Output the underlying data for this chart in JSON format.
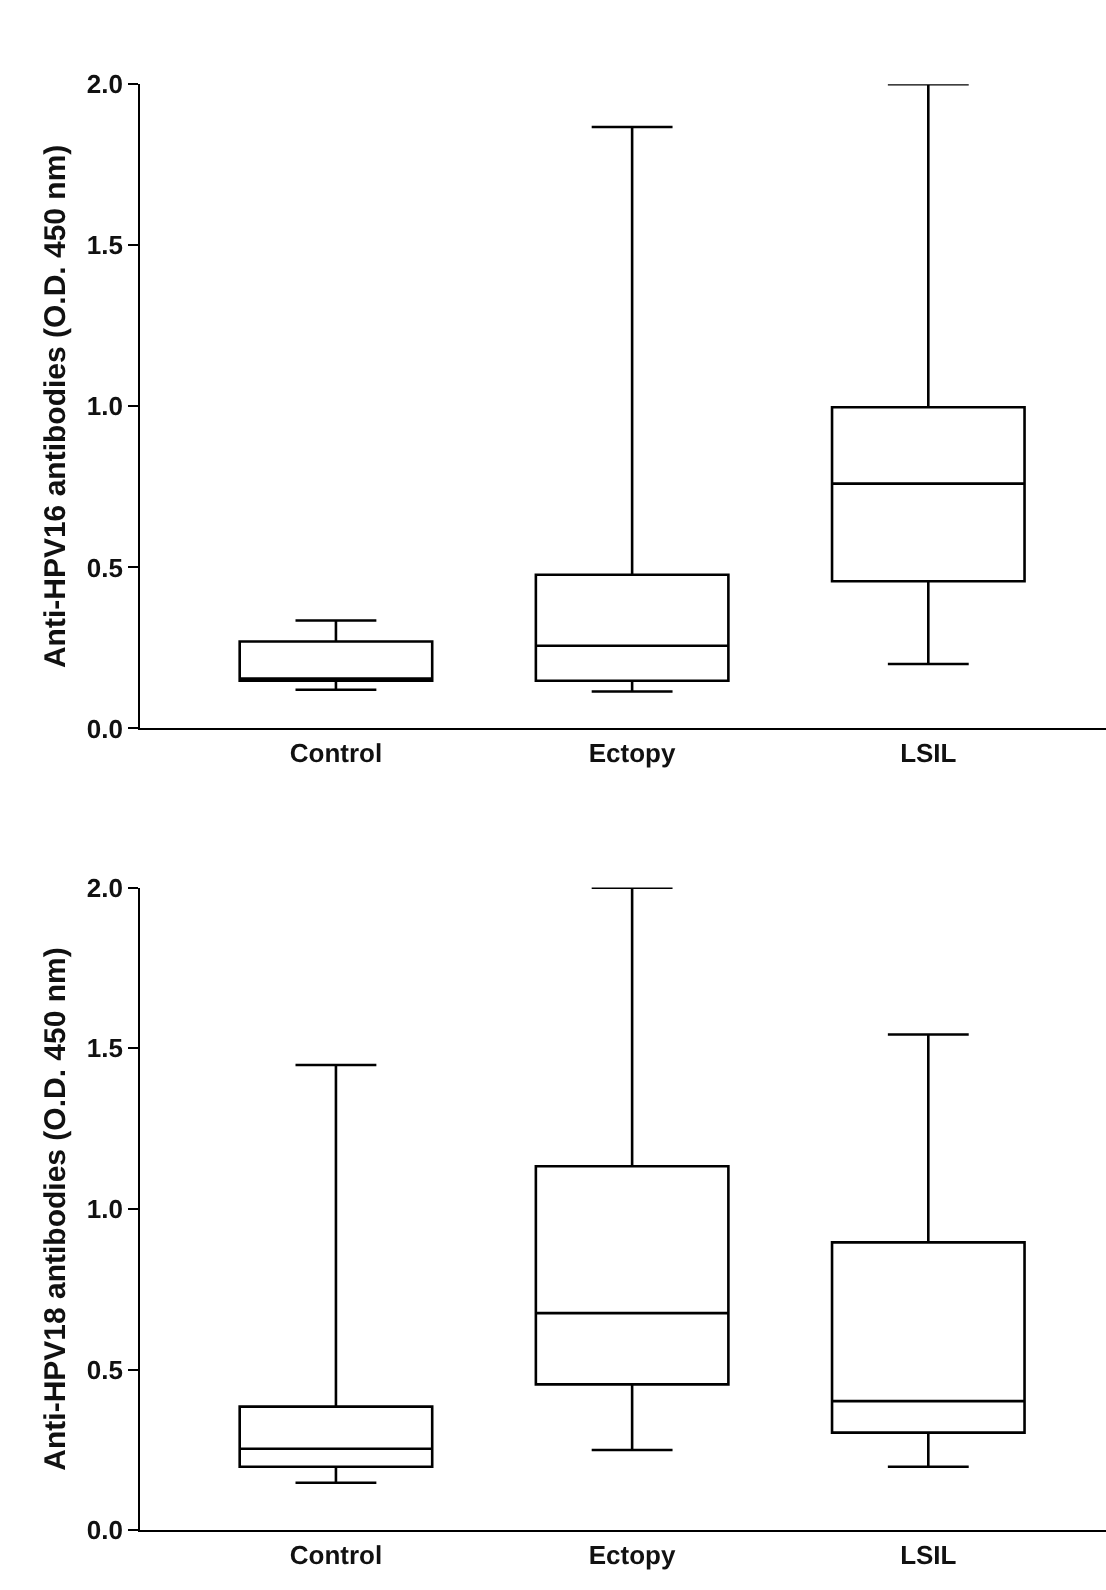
{
  "chart_data": [
    {
      "type": "box",
      "ylabel": "Anti-HPV16 antibodies (O.D. 450 nm)",
      "categories": [
        "Control",
        "Ectopy",
        "LSIL"
      ],
      "ylim": [
        0,
        2.0
      ],
      "yticks": [
        {
          "value": 0,
          "label": "0.0"
        },
        {
          "value": 0.5,
          "label": "0.5"
        },
        {
          "value": 1,
          "label": "1.0"
        },
        {
          "value": 1.5,
          "label": "1.5"
        },
        {
          "value": 2,
          "label": "2.0"
        }
      ],
      "boxes": [
        {
          "low": 0.12,
          "q1": 0.148,
          "median": 0.155,
          "q3": 0.27,
          "high": 0.335
        },
        {
          "low": 0.115,
          "q1": 0.148,
          "median": 0.257,
          "q3": 0.477,
          "high": 1.867
        },
        {
          "low": 0.2,
          "q1": 0.457,
          "median": 0.76,
          "q3": 0.997,
          "high": 2.0
        }
      ]
    },
    {
      "type": "box",
      "ylabel": "Anti-HPV18 antibodies (O.D. 450 nm)",
      "categories": [
        "Control",
        "Ectopy",
        "LSIL"
      ],
      "ylim": [
        0,
        2.0
      ],
      "yticks": [
        {
          "value": 0,
          "label": "0.0"
        },
        {
          "value": 0.5,
          "label": "0.5"
        },
        {
          "value": 1,
          "label": "1.0"
        },
        {
          "value": 1.5,
          "label": "1.5"
        },
        {
          "value": 2,
          "label": "2.0"
        }
      ],
      "boxes": [
        {
          "low": 0.148,
          "q1": 0.198,
          "median": 0.254,
          "q3": 0.385,
          "high": 1.448
        },
        {
          "low": 0.25,
          "q1": 0.454,
          "median": 0.676,
          "q3": 1.133,
          "high": 2.0
        },
        {
          "low": 0.198,
          "q1": 0.304,
          "median": 0.402,
          "q3": 0.896,
          "high": 1.543
        }
      ]
    }
  ]
}
